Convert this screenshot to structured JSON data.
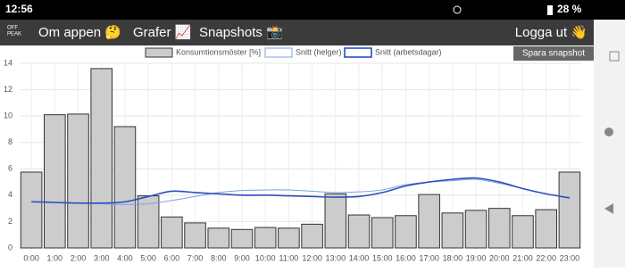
{
  "status_bar": {
    "time": "12:56",
    "battery": "28 %"
  },
  "nav": {
    "logo": [
      "OFF",
      "PEAK"
    ],
    "items": [
      "Om appen 🤔",
      "Grafer 📈",
      "Snapshots 📸"
    ],
    "logout": "Logga ut 👋"
  },
  "button": "Spara snapshot",
  "chart_data": {
    "type": "bar",
    "categories": [
      "0:00",
      "1:00",
      "2:00",
      "3:00",
      "4:00",
      "5:00",
      "6:00",
      "7:00",
      "8:00",
      "9:00",
      "10:00",
      "11:00",
      "12:00",
      "13:00",
      "14:00",
      "15:00",
      "16:00",
      "17:00",
      "18:00",
      "19:00",
      "20:00",
      "21:00",
      "22:00",
      "23:00"
    ],
    "series": [
      {
        "name": "Konsumtionsmöster [%]",
        "type": "bar",
        "color": "#cccccc",
        "values": [
          5.75,
          10.1,
          10.15,
          13.6,
          9.2,
          3.95,
          2.35,
          1.9,
          1.5,
          1.4,
          1.55,
          1.5,
          1.8,
          4.1,
          2.5,
          2.3,
          2.45,
          4.05,
          2.65,
          2.85,
          3.0,
          2.45,
          2.9,
          5.75
        ]
      },
      {
        "name": "Snitt (helger)",
        "type": "line",
        "color": "#7f9fe0",
        "values": [
          3.5,
          3.45,
          3.4,
          3.35,
          3.3,
          3.35,
          3.6,
          3.9,
          4.2,
          4.35,
          4.4,
          4.4,
          4.3,
          4.2,
          4.25,
          4.4,
          4.8,
          5.0,
          5.1,
          5.2,
          4.9,
          4.5,
          4.1,
          3.75
        ]
      },
      {
        "name": "Snitt (arbetsdagar)",
        "type": "line",
        "color": "#2a4fc0",
        "values": [
          3.5,
          3.45,
          3.4,
          3.4,
          3.5,
          3.9,
          4.3,
          4.2,
          4.1,
          4.0,
          4.0,
          3.95,
          3.9,
          3.85,
          3.9,
          4.2,
          4.7,
          5.0,
          5.2,
          5.3,
          5.0,
          4.5,
          4.1,
          3.8
        ]
      }
    ],
    "ylim": [
      0,
      14
    ],
    "yticks": [
      0,
      2,
      4,
      6,
      8,
      10,
      12,
      14
    ],
    "grid": true
  }
}
